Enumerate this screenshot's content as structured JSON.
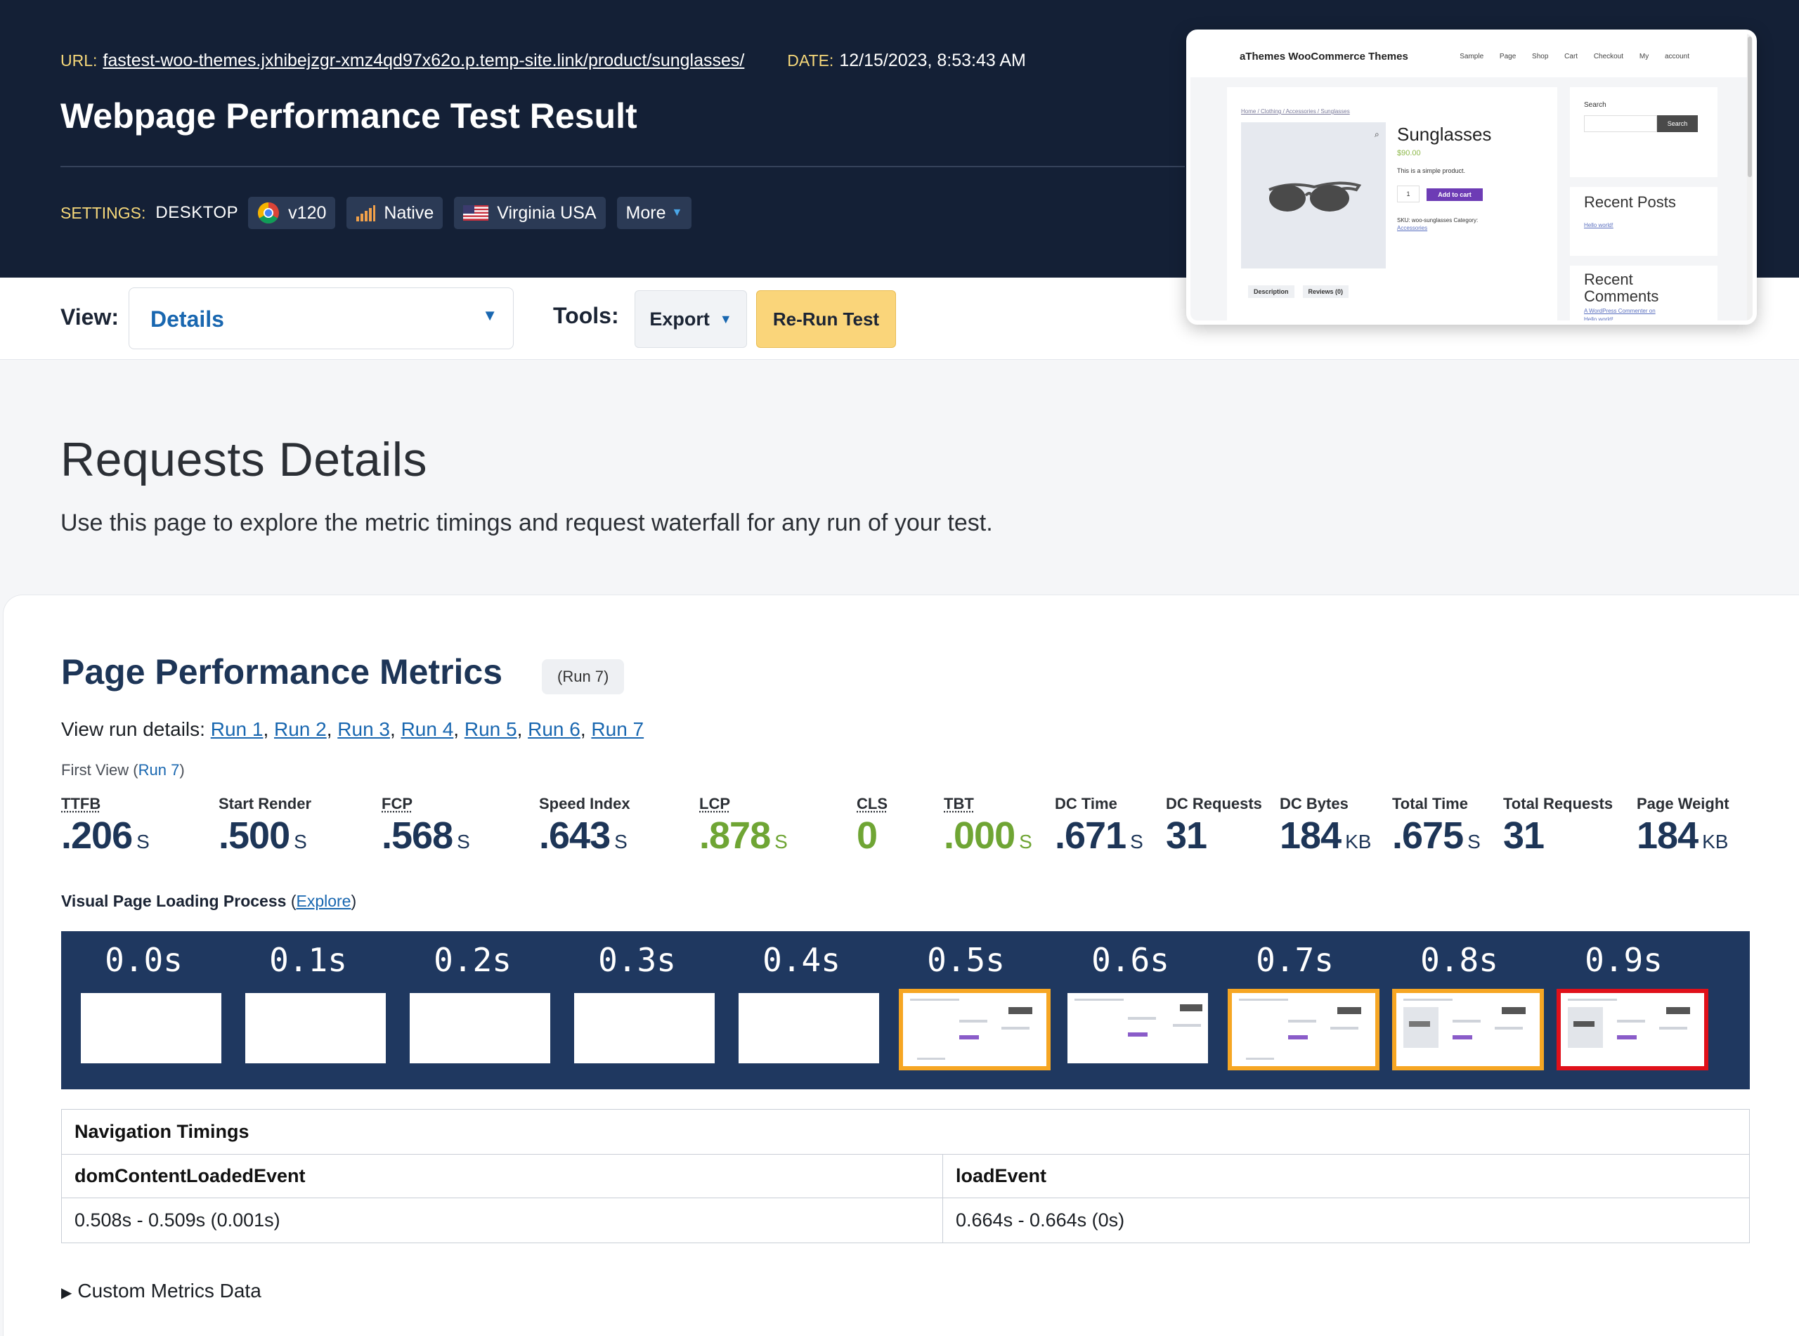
{
  "header": {
    "url_label": "URL:",
    "url": "fastest-woo-themes.jxhibejzgr-xmz4qd97x62o.p.temp-site.link/product/sunglasses/",
    "date_label": "DATE:",
    "date": "12/15/2023, 8:53:43 AM",
    "title": "Webpage Performance Test Result",
    "settings_label": "SETTINGS:",
    "device": "DESKTOP",
    "browser_version": "v120",
    "connection": "Native",
    "location": "Virginia USA",
    "more_label": "More"
  },
  "toolbar": {
    "view_label": "View:",
    "view_value": "Details",
    "tools_label": "Tools:",
    "export_label": "Export",
    "rerun_label": "Re-Run Test"
  },
  "thumbnail": {
    "brand": "aThemes WooCommerce Themes",
    "menu": "Sample Page Shop Cart Checkout My account",
    "breadcrumb": "Home / Clothing / Accessories / Sunglasses",
    "product_name": "Sunglasses",
    "price": "$90.00",
    "desc": "This is a simple product.",
    "qty": "1",
    "add_to_cart": "Add to cart",
    "sku": "SKU: woo-sunglasses Category:",
    "category": "Accessories",
    "tab1": "Description",
    "tab2": "Reviews (0)",
    "search_label": "Search",
    "search_btn": "Search",
    "recent_posts": "Recent Posts",
    "hello_world": "Hello world!",
    "recent_comments": "Recent Comments",
    "commenter": "A WordPress Commenter on",
    "hello_world2": "Hello world!"
  },
  "page": {
    "title": "Requests Details",
    "description": "Use this page to explore the metric timings and request waterfall for any run of your test."
  },
  "metrics_section": {
    "title": "Page Performance Metrics",
    "run_badge": "(Run 7)",
    "run_details_label": "View run details:",
    "runs": [
      "Run 1",
      "Run 2",
      "Run 3",
      "Run 4",
      "Run 5",
      "Run 6",
      "Run 7"
    ],
    "first_view_prefix": "First View (",
    "first_view_run": "Run 7",
    "first_view_suffix": ")",
    "metrics": [
      {
        "label": "TTFB",
        "value": ".206",
        "unit": "S"
      },
      {
        "label": "Start Render",
        "value": ".500",
        "unit": "S"
      },
      {
        "label": "FCP",
        "value": ".568",
        "unit": "S"
      },
      {
        "label": "Speed Index",
        "value": ".643",
        "unit": "S"
      },
      {
        "label": "LCP",
        "value": ".878",
        "unit": "S"
      },
      {
        "label": "CLS",
        "value": "0",
        "unit": ""
      },
      {
        "label": "TBT",
        "value": ".000",
        "unit": "S"
      },
      {
        "label": "DC Time",
        "value": ".671",
        "unit": "S"
      },
      {
        "label": "DC Requests",
        "value": "31",
        "unit": ""
      },
      {
        "label": "DC Bytes",
        "value": "184",
        "unit": "KB"
      },
      {
        "label": "Total Time",
        "value": ".675",
        "unit": "S"
      },
      {
        "label": "Total Requests",
        "value": "31",
        "unit": ""
      },
      {
        "label": "Page Weight",
        "value": "184",
        "unit": "KB"
      }
    ],
    "visual_label": "Visual Page Loading Process",
    "explore_label": "Explore",
    "frames": [
      "0.0s",
      "0.1s",
      "0.2s",
      "0.3s",
      "0.4s",
      "0.5s",
      "0.6s",
      "0.7s",
      "0.8s",
      "0.9s"
    ],
    "frame_colors": {
      "changed": "#f6a623",
      "lcp": "#e0101a"
    },
    "nav_timings": {
      "title": "Navigation Timings",
      "col1_header": "domContentLoadedEvent",
      "col1_value": "0.508s - 0.509s (0.001s)",
      "col2_header": "loadEvent",
      "col2_value": "0.664s - 0.664s (0s)"
    },
    "custom_metrics_label": "Custom Metrics Data"
  },
  "colors": {
    "header_bg": "#142036",
    "accent_yellow": "#f6d87a",
    "link_blue": "#1967b0",
    "metric_navy": "#1d3557",
    "metric_green": "#6fa534",
    "rerun_bg": "#fad57a"
  }
}
